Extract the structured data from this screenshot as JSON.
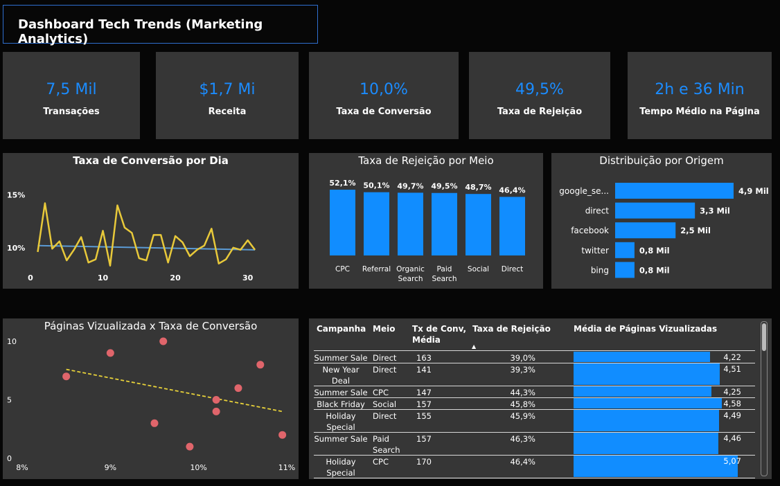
{
  "title": "Dashboard Tech Trends (Marketing Analytics)",
  "kpis": [
    {
      "value": "7,5 Mil",
      "label": "Transações"
    },
    {
      "value": "$1,7 Mi",
      "label": "Receita"
    },
    {
      "value": "10,0%",
      "label": "Taxa de Conversão"
    },
    {
      "value": "49,5%",
      "label": "Taxa de Rejeição"
    },
    {
      "value": "2h e 36 Min",
      "label": "Tempo Médio na Página"
    }
  ],
  "colors": {
    "accent": "#118dff",
    "line": "#e8c93a",
    "trend": "#5b9bd5",
    "scatter": "#e0656b"
  },
  "chart_data": [
    {
      "type": "line",
      "title": "Taxa de Conversão por Dia",
      "x": [
        1,
        2,
        3,
        4,
        5,
        6,
        7,
        8,
        9,
        10,
        11,
        12,
        13,
        14,
        15,
        16,
        17,
        18,
        19,
        20,
        21,
        22,
        23,
        24,
        25,
        26,
        27,
        28,
        29,
        30,
        31
      ],
      "y": [
        9.6,
        14.2,
        9.9,
        10.6,
        8.8,
        9.8,
        11.0,
        8.6,
        8.9,
        11.6,
        8.3,
        14.0,
        11.9,
        11.4,
        9.0,
        8.8,
        11.2,
        11.2,
        8.6,
        11.1,
        10.5,
        9.2,
        9.8,
        10.2,
        11.8,
        8.5,
        8.9,
        10.0,
        9.8,
        10.7,
        9.8
      ],
      "trend": [
        10.2,
        9.8
      ],
      "xticks": [
        "0",
        "10",
        "20",
        "30"
      ],
      "yticks": [
        "15%",
        "10%"
      ],
      "xlim": [
        0,
        33
      ],
      "ylim": [
        7.5,
        16
      ]
    },
    {
      "type": "bar",
      "title": "Taxa de Rejeição por Meio",
      "categories": [
        "CPC",
        "Referral",
        "Organic Search",
        "Paid Search",
        "Social",
        "Direct"
      ],
      "values": [
        52.1,
        50.1,
        49.7,
        49.5,
        48.7,
        46.4
      ],
      "labels": [
        "52,1%",
        "50,1%",
        "49,7%",
        "49,5%",
        "48,7%",
        "46,4%"
      ]
    },
    {
      "type": "bar",
      "title": "Distribuição por Origem",
      "categories": [
        "google_se...",
        "direct",
        "facebook",
        "twitter",
        "bing"
      ],
      "values": [
        4.9,
        3.3,
        2.5,
        0.8,
        0.8
      ],
      "labels": [
        "4,9 Mil",
        "3,3 Mil",
        "2,5 Mil",
        "0,8 Mil",
        "0,8 Mil"
      ],
      "orientation": "horizontal"
    },
    {
      "type": "scatter",
      "title": "Páginas Vizualizada x Taxa de Conversão",
      "x": [
        8.5,
        9.0,
        9.6,
        9.5,
        10.2,
        10.2,
        10.45,
        10.7,
        10.95,
        9.9
      ],
      "y": [
        7,
        9,
        10,
        3,
        4,
        5,
        6,
        8,
        2,
        1
      ],
      "trend": [
        [
          8.5,
          7.6
        ],
        [
          10.95,
          4.0
        ]
      ],
      "xticks": [
        "8%",
        "9%",
        "10%",
        "11%"
      ],
      "yticks": [
        "10",
        "5",
        "0"
      ],
      "xlim": [
        8,
        11
      ],
      "ylim": [
        0,
        10
      ]
    }
  ],
  "table": {
    "headers": [
      "Campanha",
      "Meio",
      "Tx de Conv, Média",
      "Taxa de Rejeição",
      "Média de Páginas Vizualizadas"
    ],
    "sort_indicator": "▲",
    "rows": [
      {
        "campanha": "Summer Sale",
        "meio": "Direct",
        "tx": "163",
        "rej": "39,0%",
        "pag": "4,22",
        "pag_val": 4.22
      },
      {
        "campanha": "New Year Deal",
        "meio": "Direct",
        "tx": "141",
        "rej": "39,3%",
        "pag": "4,51",
        "pag_val": 4.51
      },
      {
        "campanha": "Summer Sale",
        "meio": "CPC",
        "tx": "147",
        "rej": "44,3%",
        "pag": "4,25",
        "pag_val": 4.25
      },
      {
        "campanha": "Black Friday",
        "meio": "Social",
        "tx": "157",
        "rej": "45,8%",
        "pag": "4,58",
        "pag_val": 4.58
      },
      {
        "campanha": "Holiday Special",
        "meio": "Direct",
        "tx": "155",
        "rej": "45,9%",
        "pag": "4,49",
        "pag_val": 4.49
      },
      {
        "campanha": "Summer Sale",
        "meio": "Paid Search",
        "tx": "157",
        "rej": "46,3%",
        "pag": "4,46",
        "pag_val": 4.46
      },
      {
        "campanha": "Holiday Special",
        "meio": "CPC",
        "tx": "170",
        "rej": "46,4%",
        "pag": "5,07",
        "pag_val": 5.07
      }
    ]
  }
}
